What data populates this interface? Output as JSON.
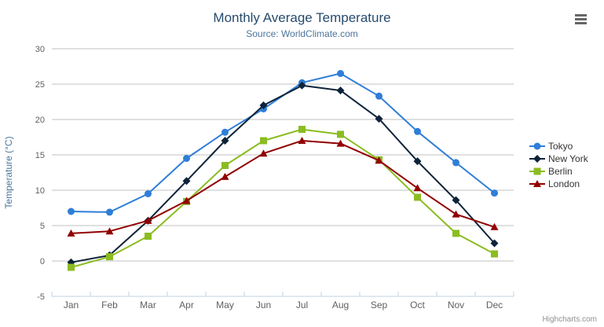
{
  "chart_data": {
    "type": "line",
    "title": "Monthly Average Temperature",
    "subtitle": "Source: WorldClimate.com",
    "categories": [
      "Jan",
      "Feb",
      "Mar",
      "Apr",
      "May",
      "Jun",
      "Jul",
      "Aug",
      "Sep",
      "Oct",
      "Nov",
      "Dec"
    ],
    "series": [
      {
        "name": "Tokyo",
        "color": "#2f7ed8",
        "marker": "circle",
        "values": [
          7.0,
          6.9,
          9.5,
          14.5,
          18.2,
          21.5,
          25.2,
          26.5,
          23.3,
          18.3,
          13.9,
          9.6
        ]
      },
      {
        "name": "New York",
        "color": "#0d233a",
        "marker": "diamond",
        "values": [
          -0.2,
          0.8,
          5.7,
          11.3,
          17.0,
          22.0,
          24.8,
          24.1,
          20.1,
          14.1,
          8.6,
          2.5
        ]
      },
      {
        "name": "Berlin",
        "color": "#8bbc21",
        "marker": "square",
        "values": [
          -0.9,
          0.6,
          3.5,
          8.4,
          13.5,
          17.0,
          18.6,
          17.9,
          14.3,
          9.0,
          3.9,
          1.0
        ]
      },
      {
        "name": "London",
        "color": "#910000",
        "marker": "triangle",
        "values": [
          3.9,
          4.2,
          5.7,
          8.5,
          11.9,
          15.2,
          17.0,
          16.6,
          14.2,
          10.3,
          6.6,
          4.8
        ]
      }
    ],
    "xlabel": "",
    "ylabel": "Temperature (°C)",
    "ylim": [
      -5,
      30
    ],
    "yticks": [
      -5,
      0,
      5,
      10,
      15,
      20,
      25,
      30
    ],
    "grid": true,
    "legend_position": "right"
  },
  "credits": {
    "label": "Highcharts.com"
  },
  "colors": {
    "title": "#274b6d",
    "subtitle": "#4d759e",
    "axis_title": "#4d759e",
    "tick_label": "#606060",
    "gridline": "#c0c0c0",
    "axis_line": "#c0d0e0",
    "legend_text": "#333333",
    "credits": "#909090",
    "export_icon": "#666666"
  }
}
